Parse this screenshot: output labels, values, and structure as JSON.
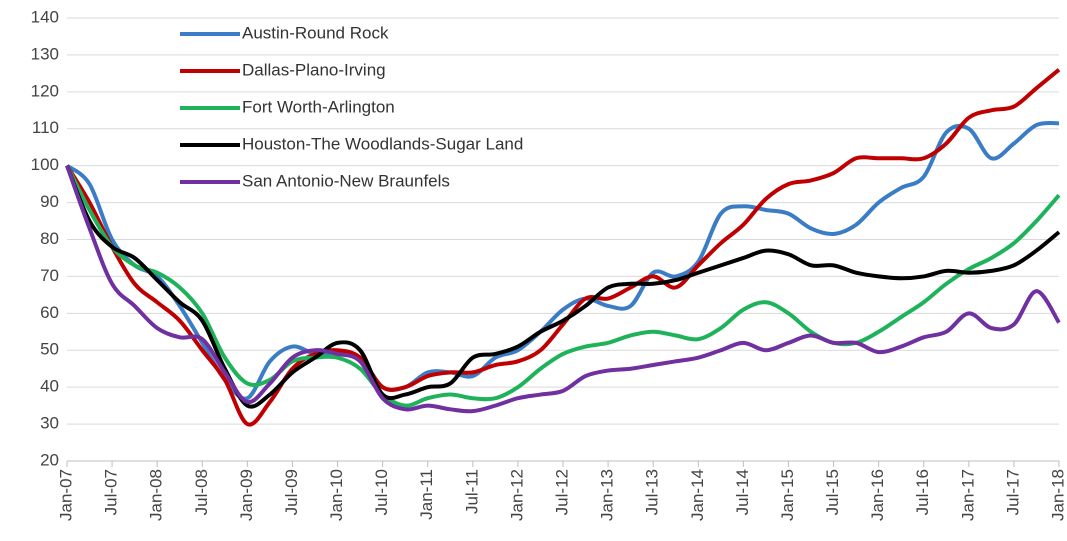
{
  "chart_data": {
    "type": "line",
    "categories": [
      "Jan-07",
      null,
      "Jul-07",
      null,
      "Jan-08",
      null,
      "Jul-08",
      null,
      "Jan-09",
      null,
      "Jul-09",
      null,
      "Jan-10",
      null,
      "Jul-10",
      null,
      "Jan-11",
      null,
      "Jul-11",
      null,
      "Jan-12",
      null,
      "Jul-12",
      null,
      "Jan-13",
      null,
      "Jul-13",
      null,
      "Jan-14",
      null,
      "Jul-14",
      null,
      "Jan-15",
      null,
      "Jul-15",
      null,
      "Jan-16",
      null,
      "Jul-16",
      null,
      "Jan-17",
      null,
      "Jul-17",
      null,
      "Jan-18"
    ],
    "series": [
      {
        "name": "Austin-Round Rock",
        "color": "#3a7dc6",
        "values": [
          100,
          95,
          80,
          73,
          70,
          62,
          52,
          42,
          37,
          47,
          51,
          49,
          49,
          48,
          40,
          40,
          44,
          44,
          43,
          48,
          50,
          55,
          61,
          64,
          62,
          62,
          71,
          70,
          74,
          87,
          89,
          88,
          87,
          83,
          81.5,
          84,
          90,
          94,
          97,
          109,
          110,
          102,
          106,
          111,
          111.5
        ]
      },
      {
        "name": "Dallas-Plano-Irving",
        "color": "#c00000",
        "values": [
          100,
          90,
          78,
          68,
          63,
          58,
          50,
          42,
          30,
          36,
          45,
          49,
          50,
          48,
          40,
          40,
          43,
          44,
          44,
          46,
          47,
          50,
          57,
          64,
          64,
          67,
          70,
          67,
          73,
          79,
          84,
          91,
          95,
          96,
          98,
          102,
          102,
          102,
          102,
          106,
          113,
          115,
          116,
          121,
          126
        ]
      },
      {
        "name": "Fort Worth-Arlington",
        "color": "#1eb35a",
        "values": [
          100,
          88,
          78,
          73,
          71,
          67,
          60,
          48,
          41,
          42,
          47,
          48,
          48,
          45,
          38,
          35,
          37,
          38,
          37,
          37,
          40,
          45,
          49,
          51,
          52,
          54,
          55,
          54,
          53,
          56,
          61,
          63,
          60,
          55,
          52,
          52,
          55,
          59,
          63,
          68,
          72,
          75,
          79,
          85,
          92
        ]
      },
      {
        "name": "Houston-The Woodlands-Sugar Land",
        "color": "#000000",
        "values": [
          100,
          85,
          78,
          75,
          69,
          63,
          58,
          45,
          35,
          38,
          44,
          48,
          52,
          50,
          38,
          38,
          40,
          41,
          48,
          49,
          51,
          55,
          58,
          62,
          67,
          68,
          68,
          69,
          71,
          73,
          75,
          77,
          76,
          73,
          73,
          71,
          70,
          69.5,
          70,
          71.5,
          71,
          71.5,
          73,
          77,
          82
        ]
      },
      {
        "name": "San Antonio-New Braunfels",
        "color": "#7030a0",
        "values": [
          100,
          83,
          68,
          62,
          56,
          53.5,
          53,
          44,
          36,
          41,
          48,
          50,
          49,
          47,
          37,
          34,
          35,
          34,
          33.5,
          35,
          37,
          38,
          39,
          43,
          44.5,
          45,
          46,
          47,
          48,
          50,
          52,
          50,
          52,
          54,
          52,
          52,
          49.5,
          51,
          53.5,
          55,
          60,
          56,
          57,
          66,
          57.5
        ]
      }
    ],
    "ylim": [
      20,
      140
    ],
    "yticks": [
      20,
      30,
      40,
      50,
      60,
      70,
      80,
      90,
      100,
      110,
      120,
      130,
      140
    ],
    "grid": true,
    "legend": "upper left"
  }
}
